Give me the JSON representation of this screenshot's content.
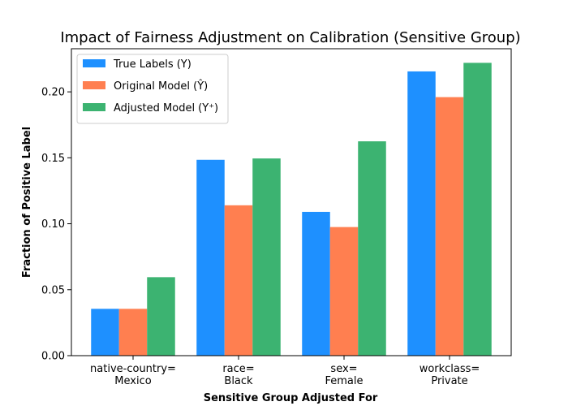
{
  "chart_data": {
    "type": "bar",
    "title": "Impact of Fairness Adjustment on Calibration (Sensitive Group)",
    "xlabel": "Sensitive Group Adjusted For",
    "ylabel": "Fraction of Positive Label",
    "categories": [
      [
        "native-country=",
        "Mexico"
      ],
      [
        "race=",
        "Black"
      ],
      [
        "sex=",
        "Female"
      ],
      [
        "workclass=",
        "Private"
      ]
    ],
    "series": [
      {
        "name": "True Labels (Y)",
        "color": "#1e90ff",
        "values": [
          0.0355,
          0.1485,
          0.109,
          0.2155
        ]
      },
      {
        "name": "Original Model (Ŷ)",
        "color": "#ff7f50",
        "values": [
          0.0355,
          0.114,
          0.0975,
          0.196
        ]
      },
      {
        "name": "Adjusted Model (Y⁺)",
        "color": "#3cb371",
        "values": [
          0.0595,
          0.1495,
          0.1625,
          0.222
        ]
      }
    ],
    "yticks": [
      "0.00",
      "0.05",
      "0.10",
      "0.15",
      "0.20"
    ],
    "ylim": [
      0,
      0.2327
    ],
    "grid": false,
    "legend_position": "upper left"
  }
}
